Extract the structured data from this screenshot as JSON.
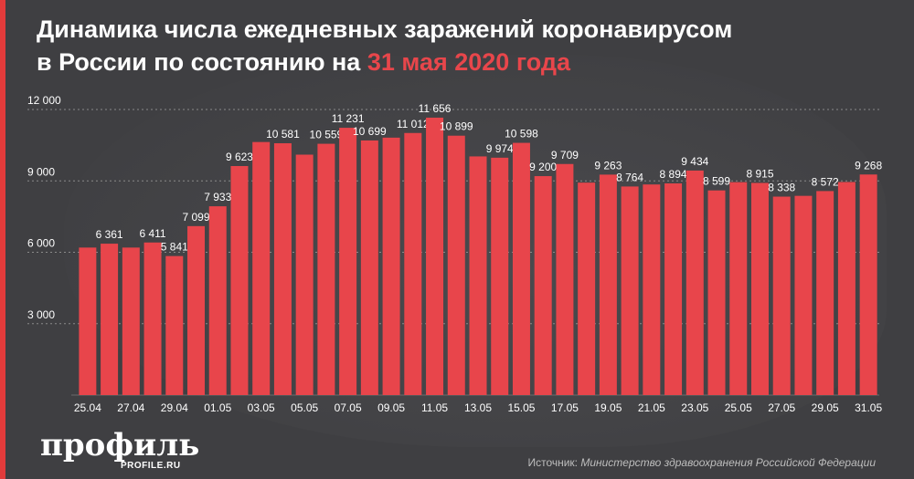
{
  "title": {
    "line1": "Динамика числа ежедневных заражений коронавирусом",
    "line2_prefix": "в России по состоянию на ",
    "line2_highlight": "31 мая 2020 года"
  },
  "colors": {
    "background": "#3f3f42",
    "bar": "#e8454b",
    "accent": "#e23b3b",
    "text": "#ffffff",
    "grid": "#8a8a8a"
  },
  "chart_data": {
    "type": "bar",
    "ylim": [
      0,
      12000
    ],
    "yticks": [
      3000,
      6000,
      9000,
      12000
    ],
    "ytick_labels": [
      "3 000",
      "6 000",
      "9 000",
      "12 000"
    ],
    "grid": true,
    "categories": [
      "25.04",
      "26.04",
      "27.04",
      "28.04",
      "29.04",
      "30.04",
      "01.05",
      "02.05",
      "03.05",
      "04.05",
      "05.05",
      "06.05",
      "07.05",
      "08.05",
      "09.05",
      "10.05",
      "11.05",
      "12.05",
      "13.05",
      "14.05",
      "15.05",
      "16.05",
      "17.05",
      "18.05",
      "19.05",
      "20.05",
      "21.05",
      "22.05",
      "23.05",
      "24.05",
      "25.05",
      "26.05",
      "27.05",
      "28.05",
      "29.05",
      "30.05",
      "31.05"
    ],
    "xtick_labels": [
      "25.04",
      "",
      "27.04",
      "",
      "29.04",
      "",
      "01.05",
      "",
      "03.05",
      "",
      "05.05",
      "",
      "07.05",
      "",
      "09.05",
      "",
      "11.05",
      "",
      "13.05",
      "",
      "15.05",
      "",
      "17.05",
      "",
      "19.05",
      "",
      "21.05",
      "",
      "23.05",
      "",
      "25.05",
      "",
      "27.05",
      "",
      "29.05",
      "",
      "31.05"
    ],
    "values": [
      6198,
      6361,
      6198,
      6411,
      5841,
      7099,
      7933,
      9623,
      10633,
      10581,
      10102,
      10559,
      11231,
      10699,
      10817,
      11012,
      11656,
      10899,
      10028,
      9974,
      10598,
      9200,
      9709,
      8926,
      9263,
      8764,
      8849,
      8894,
      9434,
      8599,
      8946,
      8915,
      8338,
      8371,
      8572,
      8952,
      9268
    ],
    "data_labels": [
      "",
      "6 361",
      "",
      "6 411",
      "5 841",
      "7 099",
      "7 933",
      "9 623",
      "",
      "10 581",
      "",
      "10 559",
      "11 231",
      "10 699",
      "",
      "11 012",
      "11 656",
      "10 899",
      "",
      "9 974",
      "10 598",
      "9 200",
      "9 709",
      "",
      "9 263",
      "8 764",
      "",
      "8 894",
      "9 434",
      "8 599",
      "",
      "8 915",
      "8 338",
      "",
      "8 572",
      "",
      "9 268"
    ]
  },
  "logo": {
    "name": "профиль",
    "site": "PROFILE.RU"
  },
  "source": {
    "label": "Источник: ",
    "text": "Министерство здравоохранения Российской Федерации"
  }
}
